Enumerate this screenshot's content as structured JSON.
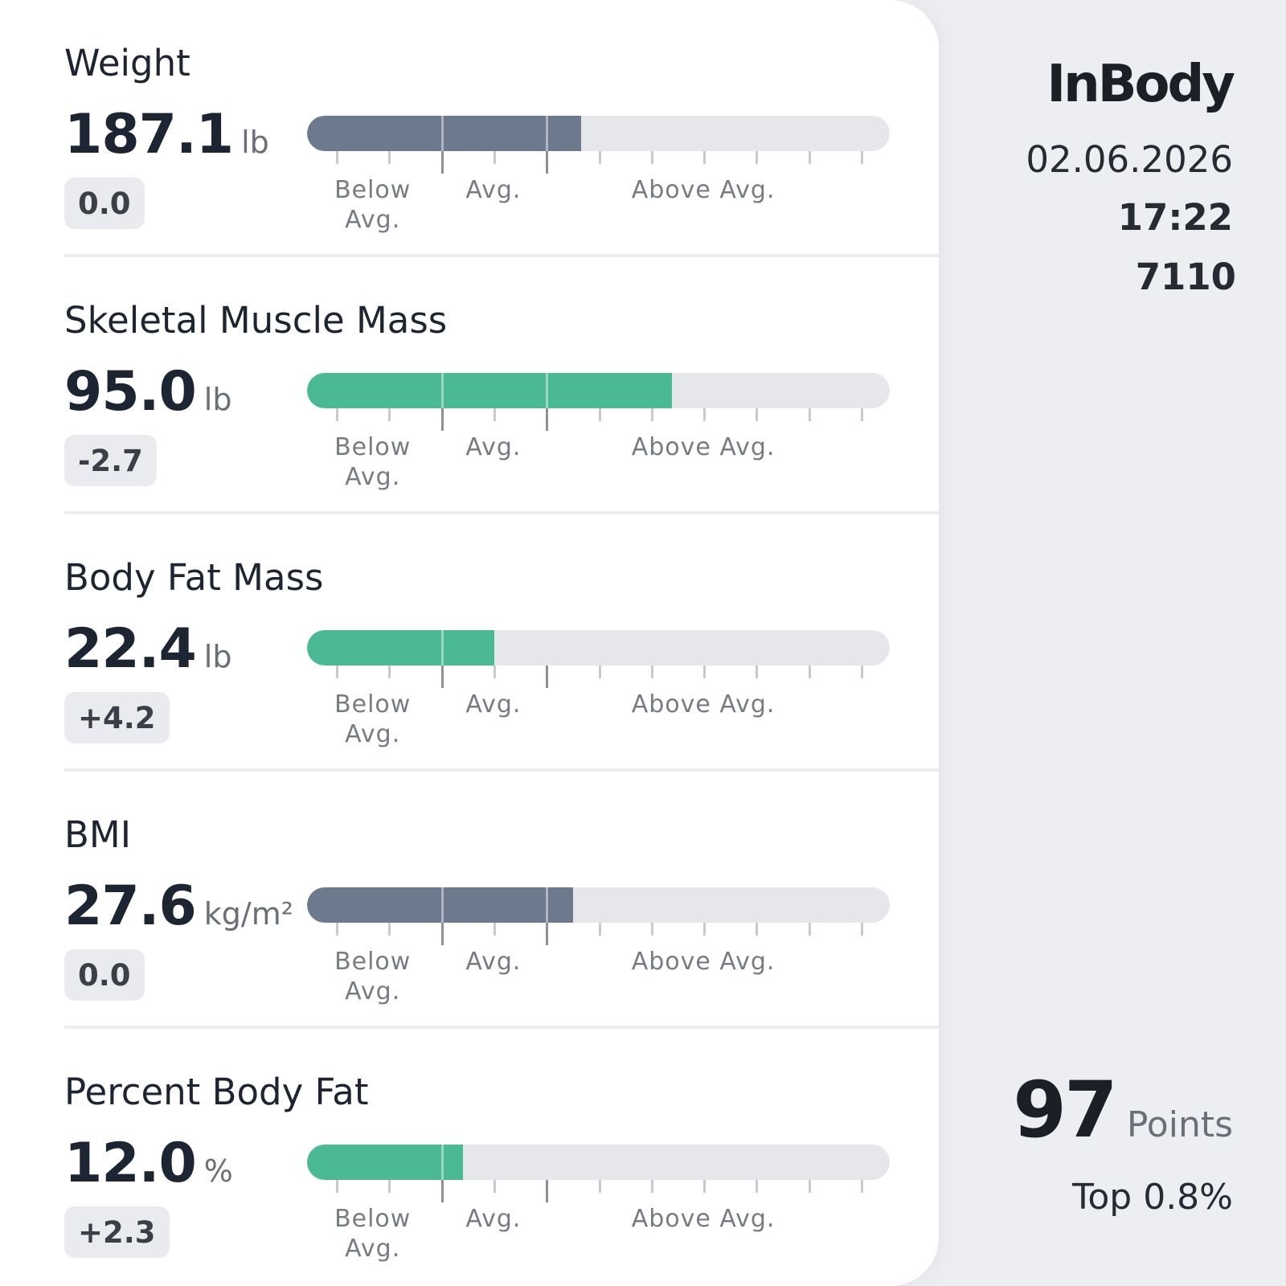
{
  "colors": {
    "neutral_bar": "#6d7a8e",
    "good_bar": "#4ab994",
    "track": "#e6e7ea"
  },
  "scale": {
    "tick_count": 11,
    "major_tick_indices": [
      2,
      4
    ],
    "zone_labels": {
      "below": "Below\nAvg.",
      "avg": "Avg.",
      "above": "Above Avg."
    }
  },
  "metrics": [
    {
      "name": "Weight",
      "value": "187.1",
      "unit": "lb",
      "change": "0.0",
      "level": 0.47,
      "status": "neutral"
    },
    {
      "name": "Skeletal Muscle Mass",
      "value": "95.0",
      "unit": "lb",
      "change": "-2.7",
      "level": 0.626,
      "status": "good"
    },
    {
      "name": "Body Fat Mass",
      "value": "22.4",
      "unit": "lb",
      "change": "+4.2",
      "level": 0.322,
      "status": "good"
    },
    {
      "name": "BMI",
      "value": "27.6",
      "unit": "kg/m²",
      "change": "0.0",
      "level": 0.457,
      "status": "neutral"
    },
    {
      "name": "Percent Body Fat",
      "value": "12.0",
      "unit": "%",
      "change": "+2.3",
      "level": 0.268,
      "status": "good"
    }
  ],
  "brand": {
    "name": "InBody"
  },
  "test_info": {
    "date": "02.06.2026",
    "time": "17:22",
    "device_id": "7110"
  },
  "score": {
    "value": "97",
    "unit": "Points",
    "rank": "Top 0.8%"
  }
}
